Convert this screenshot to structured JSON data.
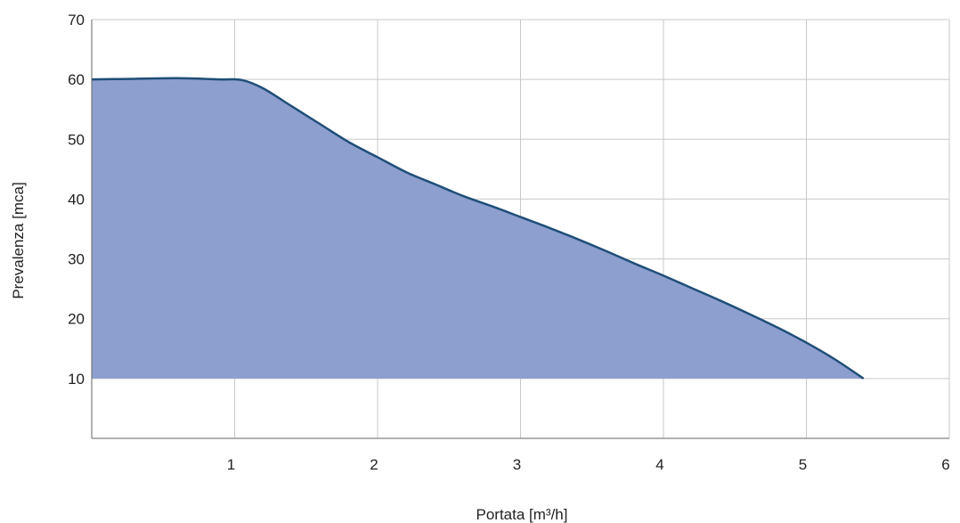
{
  "chart_data": {
    "type": "area",
    "title": "",
    "xlabel": "Portata [m³/h]",
    "ylabel": "Prevalenza [mca]",
    "xlim": [
      0,
      6
    ],
    "ylim": [
      0,
      70
    ],
    "x_ticks": [
      1,
      2,
      3,
      4,
      5,
      6
    ],
    "y_ticks": [
      10,
      20,
      30,
      40,
      50,
      60,
      70
    ],
    "grid": true,
    "area_baseline": 10,
    "series": [
      {
        "x": [
          0,
          0.3,
          0.6,
          0.9,
          1.05,
          1.2,
          1.4,
          1.6,
          1.8,
          2.0,
          2.2,
          2.4,
          2.6,
          2.8,
          3.0,
          3.2,
          3.4,
          3.6,
          3.8,
          4.0,
          4.2,
          4.4,
          4.6,
          4.8,
          5.0,
          5.2,
          5.4
        ],
        "y": [
          60,
          60.1,
          60.2,
          60.0,
          59.9,
          58.5,
          55.5,
          52.5,
          49.5,
          47.0,
          44.5,
          42.5,
          40.5,
          38.8,
          37.0,
          35.2,
          33.3,
          31.3,
          29.2,
          27.2,
          25.1,
          23.0,
          20.8,
          18.5,
          16.0,
          13.2,
          10.0
        ]
      }
    ],
    "colors": {
      "fill": "#8d9fcf",
      "line": "#1f4e79",
      "grid": "#c8c8c8",
      "axis": "#666666"
    }
  }
}
